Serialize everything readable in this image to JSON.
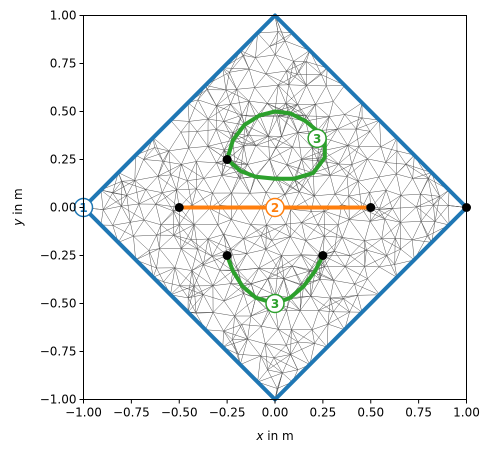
{
  "chart_data": {
    "type": "mesh",
    "xlabel_var": "x",
    "xlabel_unit": " in m",
    "ylabel_var": "y",
    "ylabel_unit": " in m",
    "xlim": [
      -1,
      1
    ],
    "ylim": [
      -1,
      1
    ],
    "xticks": [
      -1.0,
      -0.75,
      -0.5,
      -0.25,
      0.0,
      0.25,
      0.5,
      0.75,
      1.0
    ],
    "xtick_labels": [
      "−1.00",
      "−0.75",
      "−0.50",
      "−0.25",
      "0.00",
      "0.25",
      "0.50",
      "0.75",
      "1.00"
    ],
    "yticks": [
      -1.0,
      -0.75,
      -0.5,
      -0.25,
      0.0,
      0.25,
      0.5,
      0.75,
      1.0
    ],
    "ytick_labels": [
      "−1.00",
      "−0.75",
      "−0.50",
      "−0.25",
      "0.00",
      "0.25",
      "0.50",
      "0.75",
      "1.00"
    ],
    "colors": {
      "1": "#1f77b4",
      "2": "#ff7f0e",
      "3": "#2ca02c",
      "mesh": "#555555",
      "points": "#000000"
    },
    "boundaries": [
      {
        "id": "1",
        "label": "1",
        "label_at": [
          -1.0,
          0.0
        ],
        "points": [
          [
            1,
            0
          ],
          [
            0,
            1
          ],
          [
            -1,
            0
          ],
          [
            0,
            -1
          ],
          [
            1,
            0
          ]
        ]
      },
      {
        "id": "2",
        "label": "2",
        "label_at": [
          0.0,
          0.0
        ],
        "points": [
          [
            -0.5,
            0
          ],
          [
            0.5,
            0
          ]
        ]
      },
      {
        "id": "3",
        "label": "3",
        "label_at": [
          0.22,
          0.36
        ],
        "points": [
          [
            -0.25,
            0.25
          ],
          [
            -0.22,
            0.35
          ],
          [
            -0.16,
            0.43
          ],
          [
            -0.08,
            0.48
          ],
          [
            0.0,
            0.5
          ],
          [
            0.08,
            0.49
          ],
          [
            0.16,
            0.45
          ],
          [
            0.22,
            0.4
          ],
          [
            0.26,
            0.36
          ],
          [
            0.26,
            0.26
          ],
          [
            0.2,
            0.18
          ],
          [
            0.1,
            0.15
          ],
          [
            0.0,
            0.15
          ],
          [
            -0.1,
            0.16
          ],
          [
            -0.18,
            0.19
          ],
          [
            -0.25,
            0.25
          ]
        ]
      },
      {
        "id": "3",
        "label": "3",
        "label_at": [
          0.0,
          -0.5
        ],
        "points": [
          [
            -0.25,
            -0.25
          ],
          [
            -0.22,
            -0.33
          ],
          [
            -0.17,
            -0.41
          ],
          [
            -0.1,
            -0.47
          ],
          [
            0.0,
            -0.5
          ],
          [
            0.08,
            -0.47
          ],
          [
            0.15,
            -0.41
          ],
          [
            0.21,
            -0.33
          ],
          [
            0.25,
            -0.25
          ]
        ]
      }
    ],
    "vertices": [
      [
        -1,
        0
      ],
      [
        1,
        0
      ],
      [
        -0.5,
        0
      ],
      [
        0.5,
        0
      ],
      [
        -0.25,
        0.25
      ],
      [
        -0.25,
        -0.25
      ],
      [
        0.25,
        -0.25
      ]
    ]
  }
}
